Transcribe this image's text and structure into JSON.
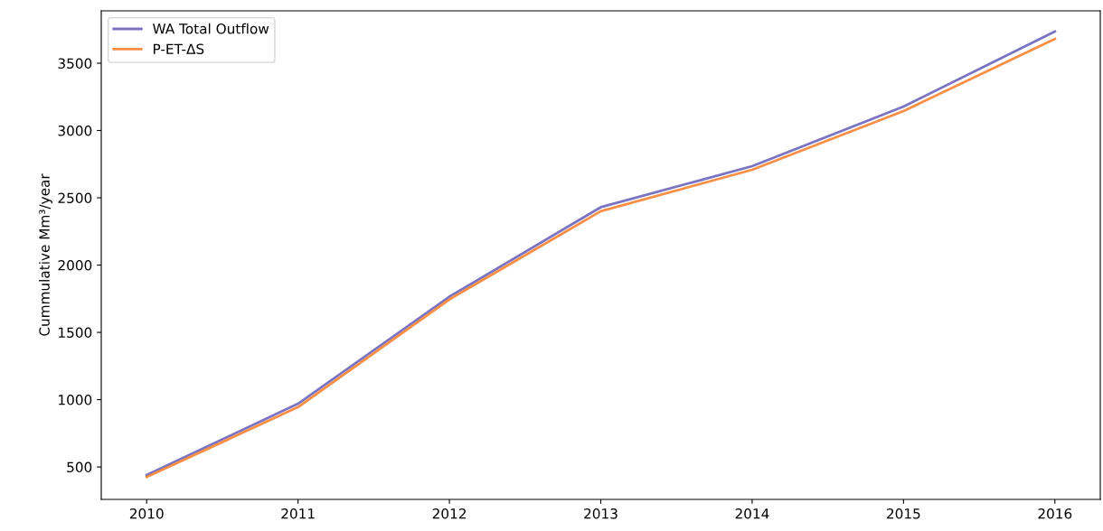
{
  "chart_data": {
    "type": "line",
    "ylabel": "Cummulative Mm³/year",
    "x": [
      2010,
      2011,
      2012,
      2013,
      2014,
      2015,
      2016
    ],
    "series": [
      {
        "name": "WA Total Outflow",
        "color": "#7a73c2",
        "values": [
          440,
          970,
          1765,
          2430,
          2735,
          3178,
          3735
        ]
      },
      {
        "name": "P-ET-ΔS",
        "color": "#f98e45",
        "values": [
          425,
          945,
          1745,
          2400,
          2708,
          3144,
          3681
        ]
      }
    ],
    "xlim": [
      2009.7,
      2016.3
    ],
    "xticks": [
      2010,
      2011,
      2012,
      2013,
      2014,
      2015,
      2016
    ],
    "ylim": [
      259,
      3889
    ],
    "yticks": [
      500,
      1000,
      1500,
      2000,
      2500,
      3000,
      3500
    ],
    "grid": false,
    "legend": "top left",
    "marker": "none",
    "line_style": "solid"
  }
}
